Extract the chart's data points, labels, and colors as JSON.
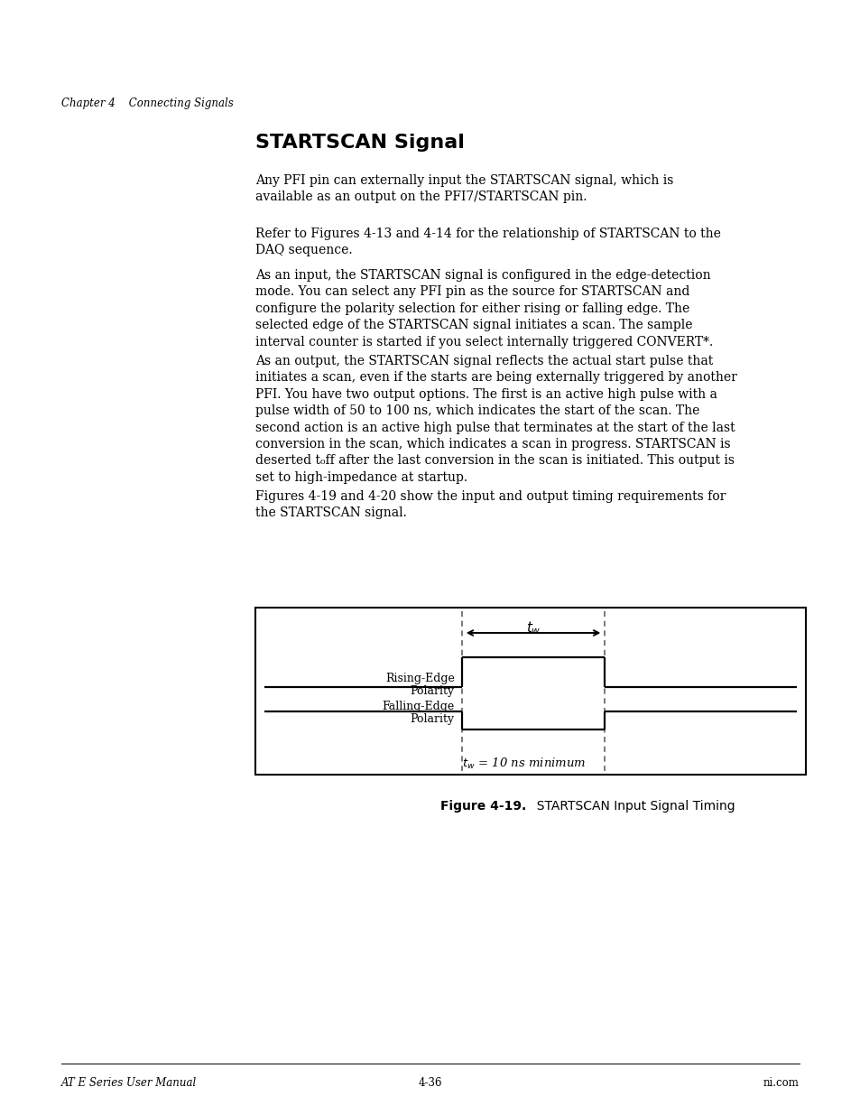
{
  "page_title": "STARTSCAN Signal",
  "chapter_header": "Chapter 4    Connecting Signals",
  "footer_left": "AT E Series User Manual",
  "footer_center": "4-36",
  "footer_right": "ni.com",
  "para0": "Any PFI pin can externally input the STARTSCAN signal, which is\navailable as an output on the PFI7/STARTSCAN pin.",
  "para1": "Refer to Figures 4-13 and 4-14 for the relationship of STARTSCAN to the\nDAQ sequence.",
  "para2": "As an input, the STARTSCAN signal is configured in the edge-detection\nmode. You can select any PFI pin as the source for STARTSCAN and\nconfigure the polarity selection for either rising or falling edge. The\nselected edge of the STARTSCAN signal initiates a scan. The sample\ninterval counter is started if you select internally triggered CONVERT*.",
  "para3": "As an output, the STARTSCAN signal reflects the actual start pulse that\ninitiates a scan, even if the starts are being externally triggered by another\nPFI. You have two output options. The first is an active high pulse with a\npulse width of 50 to 100 ns, which indicates the start of the scan. The\nsecond action is an active high pulse that terminates at the start of the last\nconversion in the scan, which indicates a scan in progress. STARTSCAN is\ndeserted t₀ff after the last conversion in the scan is initiated. This output is\nset to high-impedance at startup.",
  "para4": "Figures 4-19 and 4-20 show the input and output timing requirements for\nthe STARTSCAN signal.",
  "figure_caption_bold": "Figure 4-19.",
  "figure_caption_normal": "  STARTSCAN Input Signal Timing",
  "rising_label_line1": "Rising-Edge",
  "rising_label_line2": "Polarity",
  "falling_label_line1": "Falling-Edge",
  "falling_label_line2": "Polarity",
  "tw_label": "t_w",
  "tw_annotation": "t_w = 10 ns minimum",
  "bg_color": "#ffffff",
  "text_color": "#000000"
}
